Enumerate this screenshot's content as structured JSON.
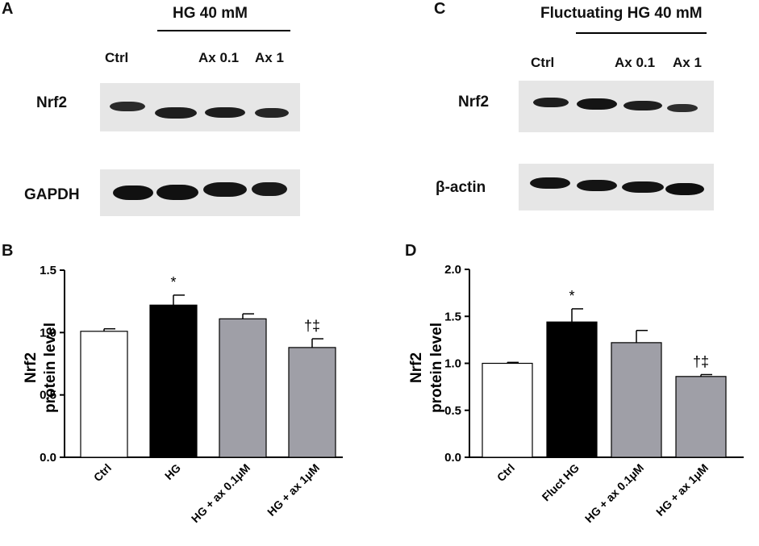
{
  "panels": {
    "A": {
      "letter": "A",
      "title": "HG 40 mM",
      "lanes": [
        "Ctrl",
        "Ax 0.1",
        "Ax 1"
      ],
      "rows": [
        "Nrf2",
        "GAPDH"
      ]
    },
    "C": {
      "letter": "C",
      "title": "Fluctuating HG 40 mM",
      "lanes": [
        "Ctrl",
        "Ax 0.1",
        "Ax 1"
      ],
      "rows": [
        "Nrf2",
        "β-actin"
      ]
    },
    "B": {
      "letter": "B"
    },
    "D": {
      "letter": "D"
    }
  },
  "colors": {
    "white_bar": "#ffffff",
    "black_bar": "#000000",
    "gray_bar": "#9f9fa7",
    "blot_bg": "#e6e6e6",
    "band": "#1e1e1e"
  },
  "chart_data": [
    {
      "type": "bar",
      "panel": "B",
      "categories": [
        "Ctrl",
        "HG",
        "HG + ax 0.1μM",
        "HG + ax 1μM"
      ],
      "values": [
        1.01,
        1.22,
        1.11,
        0.88
      ],
      "errors": [
        0.02,
        0.08,
        0.04,
        0.07
      ],
      "annotations": [
        "",
        "*",
        "",
        "†‡"
      ],
      "bar_colors": [
        "#ffffff",
        "#000000",
        "#9f9fa7",
        "#9f9fa7"
      ],
      "ylabel_line1": "Nrf2",
      "ylabel_line2": "protein level",
      "ylim": [
        0,
        1.5
      ],
      "yticks": [
        "0.0",
        "0.5",
        "1.0",
        "1.5"
      ],
      "ytick_values": [
        0,
        0.5,
        1.0,
        1.5
      ],
      "grid": false
    },
    {
      "type": "bar",
      "panel": "D",
      "categories": [
        "Ctrl",
        "Fluct HG",
        "HG + ax 0.1μM",
        "HG + ax 1μM"
      ],
      "values": [
        1.0,
        1.44,
        1.22,
        0.86
      ],
      "errors": [
        0.01,
        0.14,
        0.13,
        0.02
      ],
      "annotations": [
        "",
        "*",
        "",
        "†‡"
      ],
      "bar_colors": [
        "#ffffff",
        "#000000",
        "#9f9fa7",
        "#9f9fa7"
      ],
      "ylabel_line1": "Nrf2",
      "ylabel_line2": "protein level",
      "ylim": [
        0,
        2.0
      ],
      "yticks": [
        "0.0",
        "0.5",
        "1.0",
        "1.5",
        "2.0"
      ],
      "ytick_values": [
        0,
        0.5,
        1.0,
        1.5,
        2.0
      ],
      "grid": false
    }
  ]
}
